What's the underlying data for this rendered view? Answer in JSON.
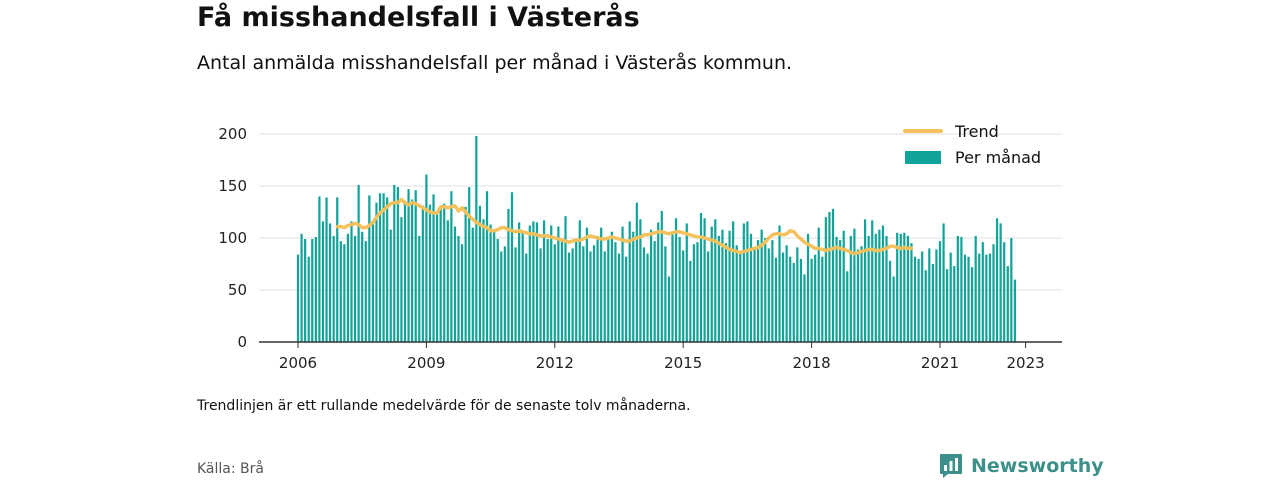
{
  "title": "Få misshandelsfall i Västerås",
  "subtitle": "Antal anmälda misshandelsfall per månad i Västerås kommun.",
  "note": "Trendlinjen är ett rullande medelvärde för de senaste tolv månaderna.",
  "source": "Källa: Brå",
  "brand": {
    "name": "Newsworthy",
    "icon": "newsworthy-logo-icon"
  },
  "colors": {
    "bars": "#0fa39a",
    "trend": "#f5c15c",
    "axis": "#333333",
    "grid": "#e0e0e0"
  },
  "chart_data": {
    "type": "bar",
    "x_axis": {
      "ticks": [
        "2006",
        "2009",
        "2012",
        "2015",
        "2018",
        "2021",
        "2023"
      ],
      "range": [
        "2006-01",
        "2023-02"
      ]
    },
    "y_axis": {
      "ticks": [
        0,
        50,
        100,
        150,
        200
      ],
      "range": [
        0,
        200
      ],
      "grid": true
    },
    "legend": {
      "position": "top-right",
      "entries": [
        "Trend",
        "Per månad"
      ]
    },
    "start_month": "2006-01",
    "series": [
      {
        "name": "Per månad",
        "kind": "bar",
        "values": [
          84,
          104,
          99,
          82,
          99,
          101,
          140,
          116,
          139,
          114,
          102,
          139,
          97,
          94,
          104,
          116,
          102,
          151,
          106,
          97,
          141,
          115,
          134,
          143,
          143,
          139,
          108,
          151,
          149,
          120,
          135,
          147,
          137,
          146,
          102,
          131,
          161,
          132,
          142,
          126,
          129,
          133,
          117,
          145,
          111,
          102,
          94,
          130,
          149,
          110,
          198,
          131,
          118,
          145,
          113,
          107,
          99,
          87,
          92,
          128,
          144,
          91,
          115,
          106,
          85,
          112,
          116,
          115,
          90,
          117,
          99,
          112,
          94,
          111,
          99,
          121,
          86,
          90,
          99,
          117,
          92,
          110,
          87,
          93,
          102,
          110,
          87,
          100,
          106,
          96,
          85,
          111,
          82,
          116,
          106,
          134,
          118,
          91,
          85,
          108,
          97,
          115,
          126,
          92,
          63,
          105,
          119,
          101,
          88,
          114,
          78,
          94,
          96,
          124,
          119,
          87,
          111,
          118,
          102,
          108,
          95,
          107,
          116,
          93,
          88,
          114,
          116,
          104,
          91,
          98,
          108,
          100,
          90,
          98,
          81,
          112,
          86,
          93,
          82,
          76,
          91,
          80,
          65,
          104,
          80,
          84,
          110,
          82,
          120,
          125,
          128,
          101,
          98,
          107,
          68,
          102,
          109,
          89,
          92,
          118,
          102,
          117,
          104,
          108,
          112,
          102,
          78,
          63,
          105,
          104,
          105,
          102,
          95,
          82,
          80,
          87,
          69,
          90,
          75,
          89,
          97,
          114,
          70,
          86,
          73,
          102,
          101,
          84,
          82,
          72,
          102,
          85,
          96,
          84,
          85,
          94,
          119,
          114,
          96,
          73,
          100,
          60
        ]
      },
      {
        "name": "Trend",
        "kind": "line",
        "start_index": 11,
        "values": [
          111,
          111,
          110,
          112,
          113,
          114,
          113,
          110,
          110,
          112,
          115,
          120,
          124,
          127,
          130,
          133,
          134,
          134,
          137,
          134,
          132,
          134,
          133,
          131,
          129,
          127,
          125,
          124,
          124,
          130,
          130,
          129,
          130,
          131,
          126,
          129,
          125,
          121,
          118,
          115,
          113,
          111,
          110,
          107,
          107,
          108,
          110,
          110,
          108,
          107,
          106,
          107,
          106,
          105,
          104,
          104,
          103,
          102,
          102,
          102,
          101,
          100,
          99,
          98,
          97,
          96,
          97,
          98,
          98,
          99,
          101,
          102,
          101,
          100,
          99,
          99,
          100,
          101,
          100,
          99,
          98,
          97,
          97,
          99,
          100,
          101,
          103,
          103,
          104,
          105,
          106,
          106,
          105,
          104,
          105,
          106,
          106,
          105,
          104,
          103,
          102,
          101,
          101,
          100,
          99,
          98,
          97,
          95,
          93,
          91,
          89,
          88,
          87,
          86,
          87,
          88,
          89,
          90,
          91,
          93,
          96,
          100,
          103,
          104,
          104,
          103,
          104,
          107,
          106,
          102,
          99,
          96,
          94,
          92,
          90,
          90,
          89,
          88,
          89,
          90,
          91,
          90,
          89,
          88,
          86,
          85,
          86,
          87,
          88,
          89,
          89,
          88,
          88,
          89,
          90,
          92,
          92,
          91,
          90,
          91,
          90,
          90
        ]
      }
    ]
  }
}
